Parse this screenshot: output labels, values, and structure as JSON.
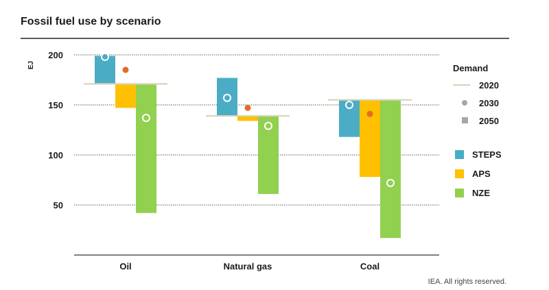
{
  "title": "Fossil fuel use by scenario",
  "credit": "IEA. All rights reserved.",
  "colors": {
    "STEPS": "#4bacc6",
    "APS": "#ffc000",
    "NZE": "#92d050",
    "dot2030": "#a6a6a6",
    "dot_orange": "#e46c22",
    "line2020": "#d8d3b9",
    "grid": "#555555"
  },
  "chart_data": {
    "type": "bar",
    "title": "Fossil fuel use by scenario",
    "ylabel": "EJ",
    "ylim": [
      0,
      200
    ],
    "yticks": [
      50,
      100,
      150,
      200
    ],
    "categories": [
      "Oil",
      "Natural gas",
      "Coal"
    ],
    "demand_2020": [
      171,
      139,
      155
    ],
    "series": [
      {
        "name": "STEPS",
        "values_2030": [
          198,
          157,
          150
        ],
        "values_2050": [
          199,
          177,
          118
        ],
        "dot_color": "white"
      },
      {
        "name": "APS",
        "values_2030": [
          185,
          147,
          141
        ],
        "values_2050": [
          147,
          134,
          78
        ],
        "dot_color": "orange"
      },
      {
        "name": "NZE",
        "values_2030": [
          137,
          129,
          72
        ],
        "values_2050": [
          42,
          61,
          17
        ],
        "dot_color": "white"
      }
    ],
    "legend": {
      "title": "Demand",
      "items": [
        "2020",
        "2030",
        "2050"
      ],
      "scenarios": [
        "STEPS",
        "APS",
        "NZE"
      ]
    }
  }
}
